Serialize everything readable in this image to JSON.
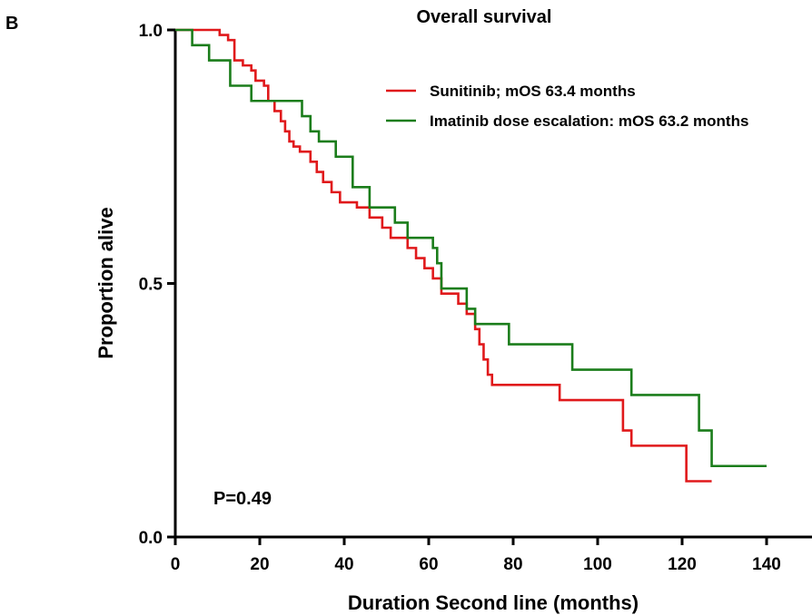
{
  "panel_label": "B",
  "chart_data": {
    "type": "line",
    "step": true,
    "title": "Overall survival",
    "xlabel": "Duration Second line (months)",
    "ylabel": "Proportion alive",
    "xlim": [
      0,
      140
    ],
    "ylim": [
      0,
      1.0
    ],
    "xticks": [
      0,
      20,
      40,
      60,
      80,
      100,
      120,
      140
    ],
    "yticks": [
      0.0,
      0.5,
      1.0
    ],
    "ytick_labels": [
      "0.0",
      "0.5",
      "1.0"
    ],
    "grid": false,
    "legend_position": "top-right",
    "annotation": "P=0.49",
    "series": [
      {
        "name": "Sunitinib; mOS 63.4 months",
        "color": "#e0191b",
        "x": [
          0,
          10.5,
          12.5,
          14,
          16,
          18,
          19,
          21,
          22,
          23.5,
          25,
          26,
          27,
          28,
          29.5,
          32,
          33.5,
          35,
          37,
          39,
          43,
          46,
          49,
          51,
          55,
          57,
          59,
          61,
          63,
          67,
          69,
          71,
          72,
          73,
          74,
          75,
          80,
          91,
          106,
          108,
          120,
          121,
          127
        ],
        "y": [
          1.0,
          0.99,
          0.98,
          0.94,
          0.93,
          0.92,
          0.9,
          0.89,
          0.86,
          0.84,
          0.82,
          0.8,
          0.78,
          0.77,
          0.76,
          0.74,
          0.72,
          0.7,
          0.68,
          0.66,
          0.65,
          0.63,
          0.61,
          0.59,
          0.57,
          0.55,
          0.53,
          0.51,
          0.48,
          0.46,
          0.44,
          0.41,
          0.38,
          0.35,
          0.32,
          0.3,
          0.3,
          0.27,
          0.21,
          0.18,
          0.18,
          0.11,
          0.11
        ]
      },
      {
        "name": "Imatinib dose escalation: mOS 63.2 months",
        "color": "#1b7d1b",
        "x": [
          0,
          4,
          8,
          13,
          18,
          24,
          30,
          32,
          34,
          38,
          42,
          46,
          52,
          55,
          58,
          61,
          62,
          63,
          69,
          71,
          74,
          79,
          85,
          94,
          101,
          108,
          115,
          124,
          127,
          140
        ],
        "y": [
          1.0,
          0.97,
          0.94,
          0.89,
          0.86,
          0.86,
          0.83,
          0.8,
          0.78,
          0.75,
          0.69,
          0.65,
          0.62,
          0.59,
          0.59,
          0.57,
          0.54,
          0.49,
          0.45,
          0.42,
          0.42,
          0.38,
          0.38,
          0.33,
          0.33,
          0.28,
          0.28,
          0.21,
          0.14,
          0.14
        ]
      }
    ]
  }
}
